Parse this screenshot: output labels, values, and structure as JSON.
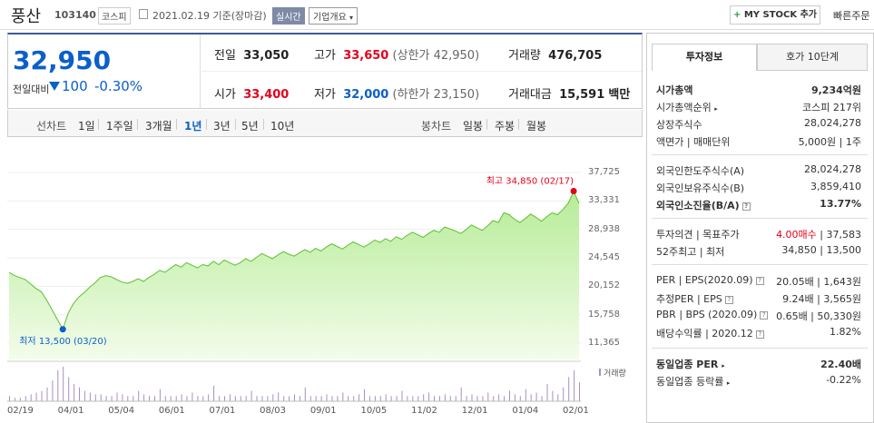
{
  "header": {
    "name": "풍산",
    "code": "103140",
    "market": "코스피",
    "date": "2021.02.19 기준(장마감)",
    "realtime": "실시간",
    "profile": "기업개요",
    "mystock_label": "MY STOCK 추가",
    "quick_order": "빠른주문"
  },
  "price": {
    "current": "32,950",
    "change_label": "전일대비",
    "change": "100",
    "change_pct": "-0.30%"
  },
  "summary": {
    "prev_label": "전일",
    "prev": "33,050",
    "high_label": "고가",
    "high": "33,650",
    "upper_limit": "(상한가 42,950)",
    "volume_label": "거래량",
    "volume": "476,705",
    "open_label": "시가",
    "open": "33,400",
    "low_label": "저가",
    "low": "32,000",
    "lower_limit": "(하한가 23,150)",
    "amount_label": "거래대금",
    "amount": "15,591",
    "amount_unit": "백만"
  },
  "periods": {
    "label": "선차트",
    "items": [
      "1일",
      "1주일",
      "3개월",
      "1년",
      "3년",
      "5년",
      "10년"
    ],
    "candle_label": "봉차트",
    "candle_items": [
      "일봉",
      "주봉",
      "월봉"
    ]
  },
  "chart_data": {
    "type": "line",
    "y_ticks": [
      "37,725",
      "33,331",
      "28,938",
      "24,545",
      "20,152",
      "15,758",
      "11,365"
    ],
    "ylim": [
      11365,
      37725
    ],
    "x_ticks": [
      "02/19",
      "04/01",
      "05/04",
      "06/01",
      "07/01",
      "08/03",
      "09/01",
      "10/05",
      "11/02",
      "12/01",
      "01/04",
      "02/01"
    ],
    "high_label": "최고 34,850 (02/17)",
    "low_label": "최저 13,500 (03/20)",
    "high": 34850,
    "low": 13500,
    "volume_legend": "거래량",
    "series": [
      {
        "values": [
          22300,
          21800,
          21500,
          21200,
          20500,
          19800,
          19300,
          18000,
          16500,
          15000,
          13500,
          16000,
          17500,
          18500,
          19200,
          20000,
          20700,
          21500,
          21800,
          21600,
          21200,
          20800,
          20600,
          20900,
          21300,
          20900,
          21500,
          22000,
          22600,
          22300,
          22900,
          23500,
          23100,
          23800,
          23400,
          23000,
          23500,
          23300,
          24000,
          23500,
          24200,
          23800,
          23400,
          23800,
          24400,
          24000,
          24600,
          25200,
          24800,
          24400,
          25000,
          25500,
          25100,
          24800,
          25300,
          25800,
          25400,
          26000,
          25600,
          26200,
          26700,
          26300,
          25900,
          26500,
          27000,
          26600,
          26200,
          26700,
          27300,
          26900,
          27500,
          27100,
          27800,
          27400,
          28000,
          28500,
          28100,
          27700,
          28300,
          28800,
          28500,
          29300,
          29000,
          28700,
          28300,
          28900,
          29600,
          29200,
          28800,
          29500,
          30300,
          30000,
          31500,
          31200,
          30500,
          30000,
          30600,
          31300,
          30800,
          30200,
          30900,
          31500,
          31200,
          32000,
          33000,
          34850,
          32950
        ]
      }
    ],
    "volume": [
      3,
      2,
      2,
      3,
      4,
      5,
      6,
      8,
      12,
      18,
      20,
      14,
      10,
      8,
      6,
      5,
      4,
      4,
      3,
      3,
      5,
      4,
      3,
      3,
      6,
      4,
      3,
      3,
      7,
      3,
      3,
      3,
      4,
      3,
      5,
      3,
      3,
      4,
      9,
      3,
      3,
      4,
      3,
      3,
      3,
      6,
      3,
      3,
      3,
      4,
      5,
      3,
      3,
      4,
      3,
      8,
      3,
      3,
      3,
      4,
      3,
      3,
      5,
      3,
      3,
      4,
      7,
      3,
      3,
      3,
      4,
      3,
      3,
      6,
      3,
      3,
      3,
      4,
      5,
      3,
      3,
      4,
      3,
      3,
      8,
      3,
      4,
      3,
      3,
      5,
      3,
      4,
      3,
      6,
      4,
      3,
      7,
      4,
      5,
      3,
      10,
      6,
      4,
      8,
      14,
      18,
      11
    ]
  },
  "right": {
    "tab1": "투자정보",
    "tab2": "호가 10단계",
    "rows1": [
      {
        "label": "시가총액",
        "value": "9,234억원",
        "bold": true
      },
      {
        "label": "시가총액순위",
        "value": "코스피 217위"
      },
      {
        "label": "상장주식수",
        "value": "28,024,278"
      },
      {
        "label": "액면가 | 매매단위",
        "value": "5,000원 | 1주"
      }
    ],
    "rows2": [
      {
        "label": "외국인한도주식수(A)",
        "value": "28,024,278"
      },
      {
        "label": "외국인보유주식수(B)",
        "value": "3,859,410"
      },
      {
        "label": "외국인소진율(B/A)",
        "value": "13.77%",
        "bold": true
      }
    ],
    "opinion_label": "투자의견 | 목표주가",
    "opinion": "4.00매수",
    "target": "37,583",
    "w52_label": "52주최고 | 최저",
    "w52": "34,850 | 13,500",
    "per_label": "PER | EPS(2020.09)",
    "per": "20.05배 | 1,643원",
    "est_label": "추정PER | EPS",
    "est": "9.24배 | 3,565원",
    "pbr_label": "PBR | BPS (2020.09)",
    "pbr": "0.65배 | 50,330원",
    "div_label": "배당수익률 | 2020.12",
    "div": "1.82%",
    "ind_per_label": "동일업종 PER",
    "ind_per": "22.40배",
    "ind_rate_label": "동일업종 등락률",
    "ind_rate": "-0.22%"
  }
}
